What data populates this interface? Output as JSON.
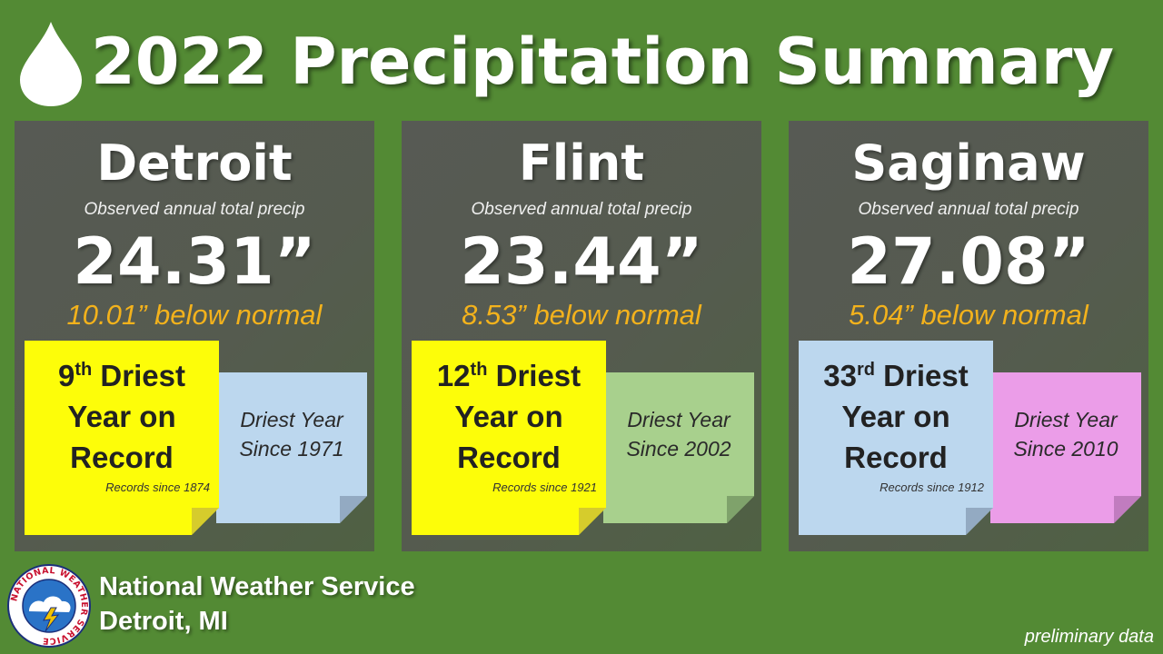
{
  "title": "2022 Precipitation Summary",
  "observed_label": "Observed annual total precip",
  "cities": [
    {
      "name": "Detroit",
      "total": "24.31”",
      "departure": "10.01” below normal",
      "rank_num": "9",
      "rank_suffix": "th",
      "rank_word": " Driest",
      "rank_line2": "Year on",
      "rank_line3": "Record",
      "records_since": "Records since 1874",
      "side_line1": "Driest Year",
      "side_line2": "Since 1971"
    },
    {
      "name": "Flint",
      "total": "23.44”",
      "departure": "8.53” below normal",
      "rank_num": "12",
      "rank_suffix": "th",
      "rank_word": " Driest",
      "rank_line2": "Year on",
      "rank_line3": "Record",
      "records_since": "Records since 1921",
      "side_line1": "Driest Year",
      "side_line2": "Since 2002"
    },
    {
      "name": "Saginaw",
      "total": "27.08”",
      "departure": "5.04” below normal",
      "rank_num": "33",
      "rank_suffix": "rd",
      "rank_word": " Driest",
      "rank_line2": "Year on",
      "rank_line3": "Record",
      "records_since": "Records since 1912",
      "side_line1": "Driest Year",
      "side_line2": "Since 2010"
    }
  ],
  "footer": {
    "org": "National Weather Service",
    "office": "Detroit, MI",
    "logo_text": "NATIONAL WEATHER SERVICE",
    "note": "preliminary data"
  },
  "colors": {
    "background": "#538a34",
    "departure_text": "#f3b21c",
    "note_yellow": "#fdfd09",
    "note_blue": "#bcd7ee",
    "note_green": "#a8d08d",
    "note_pink": "#eb9de8"
  },
  "icons": {
    "title": "raindrop-icon",
    "footer": "nws-logo"
  }
}
